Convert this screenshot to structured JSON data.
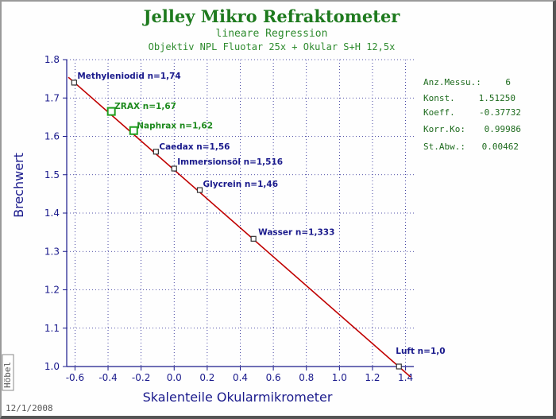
{
  "title": "Jelley Mikro Refraktometer",
  "subtitle1": "lineare Regression",
  "subtitle2": "Objektiv NPL Fluotar 25x + Okular S+H 12,5x",
  "date_text": "12/1/2008",
  "watermark": "Höbel",
  "stats": [
    {
      "label": "Anz.Messu.:",
      "value": "6"
    },
    {
      "label": "Konst.",
      "value": "1.51250"
    },
    {
      "label": "Koeff.",
      "value": "-0.37732"
    },
    {
      "label": "Korr.Ko:",
      "value": "0.99986"
    },
    {
      "label": "St.Abw.:",
      "value": "0.00462"
    }
  ],
  "colors": {
    "title": "#1e7a1e",
    "axis": "#1a1a8c",
    "line": "#c00000",
    "point_default": "#333333",
    "point_highlight": "#1fa01f",
    "label_default": "#1a1a8c",
    "label_highlight": "#1e8a1e"
  },
  "chart_data": {
    "type": "scatter",
    "xlabel": "Skalenteile Okularmikrometer",
    "ylabel": "Brechwert",
    "xlim": [
      -0.65,
      1.45
    ],
    "ylim": [
      1.0,
      1.8
    ],
    "xticks": [
      -0.6,
      -0.4,
      -0.2,
      0.0,
      0.2,
      0.4,
      0.6,
      0.8,
      1.0,
      1.2,
      1.4
    ],
    "yticks": [
      1.0,
      1.1,
      1.2,
      1.3,
      1.4,
      1.5,
      1.6,
      1.7,
      1.8
    ],
    "grid": true,
    "regression": {
      "intercept": 1.5125,
      "slope": -0.37732
    },
    "points": [
      {
        "x": -0.605,
        "y": 1.74,
        "label": "Methyleniodid n=1,74",
        "highlight": false
      },
      {
        "x": -0.38,
        "y": 1.665,
        "label": "ZRAX n=1,67",
        "highlight": true
      },
      {
        "x": -0.245,
        "y": 1.615,
        "label": "Naphrax n=1,62",
        "highlight": true
      },
      {
        "x": -0.11,
        "y": 1.56,
        "label": "Caedax n=1,56",
        "highlight": false
      },
      {
        "x": 0.0,
        "y": 1.516,
        "label": "Immersionsöl n=1,516",
        "highlight": false
      },
      {
        "x": 0.155,
        "y": 1.46,
        "label": "Glycrein n=1,46",
        "highlight": false
      },
      {
        "x": 0.48,
        "y": 1.333,
        "label": "Wasser n=1,333",
        "highlight": false
      },
      {
        "x": 1.36,
        "y": 1.0,
        "label": "Luft n=1,0",
        "highlight": false
      }
    ]
  }
}
